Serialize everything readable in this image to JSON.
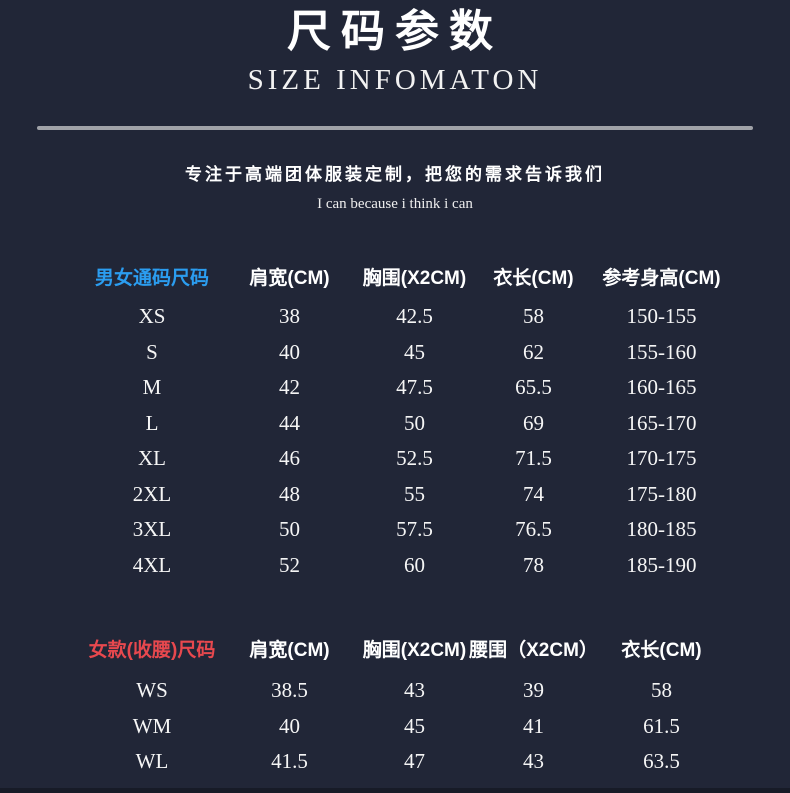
{
  "header": {
    "title_cn": "尺码参数",
    "title_en": "SIZE INFOMATON",
    "tagline": "专注于高端团体服装定制，把您的需求告诉我们",
    "motto": "I can because i think i can"
  },
  "colors": {
    "background": "#212637",
    "bottom_strip": "#171b27",
    "divider": "#a0a2a8",
    "unisex_label": "#2b9df0",
    "women_label": "#e8484e",
    "text": "#ffffff"
  },
  "tables": [
    {
      "label": "男女通码尺码",
      "columns": [
        "肩宽(CM)",
        "胸围(X2CM)",
        "衣长(CM)",
        "参考身高(CM)"
      ],
      "rows": [
        {
          "size": "XS",
          "values": [
            "38",
            "42.5",
            "58",
            "150-155"
          ]
        },
        {
          "size": "S",
          "values": [
            "40",
            "45",
            "62",
            "155-160"
          ]
        },
        {
          "size": "M",
          "values": [
            "42",
            "47.5",
            "65.5",
            "160-165"
          ]
        },
        {
          "size": "L",
          "values": [
            "44",
            "50",
            "69",
            "165-170"
          ]
        },
        {
          "size": "XL",
          "values": [
            "46",
            "52.5",
            "71.5",
            "170-175"
          ]
        },
        {
          "size": "2XL",
          "values": [
            "48",
            "55",
            "74",
            "175-180"
          ]
        },
        {
          "size": "3XL",
          "values": [
            "50",
            "57.5",
            "76.5",
            "180-185"
          ]
        },
        {
          "size": "4XL",
          "values": [
            "52",
            "60",
            "78",
            "185-190"
          ]
        }
      ]
    },
    {
      "label": "女款(收腰)尺码",
      "columns": [
        "肩宽(CM)",
        "胸围(X2CM)",
        "腰围（X2CM）",
        "衣长(CM)"
      ],
      "rows": [
        {
          "size": "WS",
          "values": [
            "38.5",
            "43",
            "39",
            "58"
          ]
        },
        {
          "size": "WM",
          "values": [
            "40",
            "45",
            "41",
            "61.5"
          ]
        },
        {
          "size": "WL",
          "values": [
            "41.5",
            "47",
            "43",
            "63.5"
          ]
        }
      ]
    }
  ]
}
